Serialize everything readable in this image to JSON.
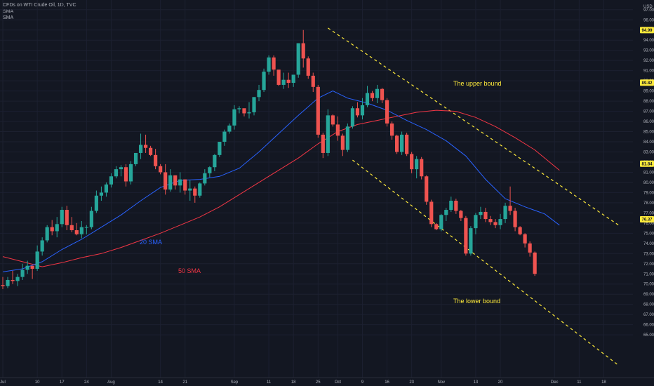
{
  "header": {
    "symbol": "CFDs on WTI Crude Oil, 1D, TVC",
    "ind1": "SMA",
    "ind2": "SMA",
    "currency": "USD"
  },
  "colors": {
    "background": "#131722",
    "up": "#26a69a",
    "down": "#ef5350",
    "sma20": "#2962ff",
    "sma50": "#f23645",
    "channel": "#ffeb3b",
    "text": "#b2b5be"
  },
  "chart_data": {
    "type": "candlestick",
    "ylim": [
      64.5,
      98
    ],
    "y_ticks": [
      "65.00",
      "66.00",
      "67.00",
      "68.00",
      "69.00",
      "70.00",
      "71.00",
      "72.00",
      "73.00",
      "74.00",
      "75.00",
      "76.00",
      "77.00",
      "78.00",
      "79.00",
      "80.00",
      "81.00",
      "82.00",
      "83.00",
      "84.00",
      "85.00",
      "86.00",
      "87.00",
      "88.00",
      "89.00",
      "90.00",
      "91.00",
      "92.00",
      "93.00",
      "94.00",
      "95.00",
      "96.00",
      "97.00"
    ],
    "x_ticks": [
      {
        "i": 0,
        "label": "Jul"
      },
      {
        "i": 7,
        "label": "10"
      },
      {
        "i": 12,
        "label": "17"
      },
      {
        "i": 17,
        "label": "24"
      },
      {
        "i": 22,
        "label": "Aug"
      },
      {
        "i": 32,
        "label": "14"
      },
      {
        "i": 37,
        "label": "21"
      },
      {
        "i": 47,
        "label": "Sep"
      },
      {
        "i": 54,
        "label": "11"
      },
      {
        "i": 59,
        "label": "18"
      },
      {
        "i": 64,
        "label": "25"
      },
      {
        "i": 68,
        "label": "Oct"
      },
      {
        "i": 73,
        "label": "9"
      },
      {
        "i": 78,
        "label": "16"
      },
      {
        "i": 83,
        "label": "23"
      },
      {
        "i": 89,
        "label": "Nov"
      },
      {
        "i": 96,
        "label": "13"
      },
      {
        "i": 101,
        "label": "20"
      },
      {
        "i": 112,
        "label": "Dec"
      },
      {
        "i": 117,
        "label": "11"
      },
      {
        "i": 122,
        "label": "18"
      }
    ],
    "candles": [
      [
        69.9,
        70.7,
        69.5,
        69.8
      ],
      [
        69.8,
        70.7,
        69.6,
        70.4
      ],
      [
        70.4,
        71.3,
        70.0,
        70.3
      ],
      [
        70.3,
        71.0,
        69.8,
        70.7
      ],
      [
        70.7,
        72.0,
        70.4,
        71.4
      ],
      [
        71.4,
        72.3,
        71.0,
        71.8
      ],
      [
        71.8,
        71.6,
        70.5,
        71.5
      ],
      [
        71.5,
        73.8,
        71.3,
        73.2
      ],
      [
        73.2,
        74.6,
        72.8,
        74.3
      ],
      [
        74.3,
        75.8,
        74.1,
        75.6
      ],
      [
        75.6,
        76.3,
        74.8,
        75.2
      ],
      [
        75.2,
        76.6,
        74.6,
        75.9
      ],
      [
        75.9,
        77.6,
        75.6,
        77.3
      ],
      [
        77.3,
        77.7,
        75.3,
        75.8
      ],
      [
        75.8,
        76.6,
        75.1,
        75.3
      ],
      [
        75.3,
        76.0,
        74.8,
        74.9
      ],
      [
        74.9,
        76.2,
        74.5,
        75.6
      ],
      [
        75.6,
        75.8,
        74.9,
        75.6
      ],
      [
        75.6,
        77.6,
        75.4,
        77.2
      ],
      [
        77.2,
        79.2,
        77.0,
        78.7
      ],
      [
        78.7,
        79.6,
        78.2,
        79.0
      ],
      [
        79.0,
        80.0,
        78.6,
        79.8
      ],
      [
        79.8,
        80.9,
        79.5,
        80.6
      ],
      [
        80.6,
        81.6,
        80.4,
        81.3
      ],
      [
        81.3,
        81.7,
        80.6,
        81.5
      ],
      [
        81.5,
        81.8,
        79.6,
        80.1
      ],
      [
        80.1,
        82.1,
        79.8,
        81.8
      ],
      [
        81.8,
        82.9,
        81.6,
        82.9
      ],
      [
        82.9,
        84.8,
        82.3,
        83.7
      ],
      [
        83.7,
        84.7,
        82.9,
        83.4
      ],
      [
        83.4,
        83.6,
        82.6,
        82.7
      ],
      [
        82.7,
        83.3,
        81.3,
        81.6
      ],
      [
        81.6,
        81.8,
        80.8,
        81.0
      ],
      [
        81.0,
        81.8,
        78.8,
        79.3
      ],
      [
        79.3,
        81.3,
        79.1,
        80.7
      ],
      [
        80.7,
        80.7,
        79.3,
        79.7
      ],
      [
        79.7,
        81.0,
        79.0,
        80.3
      ],
      [
        80.3,
        80.3,
        78.8,
        79.2
      ],
      [
        79.2,
        80.2,
        78.2,
        79.4
      ],
      [
        79.4,
        79.6,
        78.0,
        78.7
      ],
      [
        78.7,
        80.0,
        78.5,
        79.9
      ],
      [
        79.9,
        81.3,
        79.7,
        80.9
      ],
      [
        80.9,
        81.6,
        80.5,
        81.5
      ],
      [
        81.5,
        82.8,
        81.1,
        82.7
      ],
      [
        82.7,
        84.0,
        82.5,
        84.0
      ],
      [
        84.0,
        85.2,
        83.6,
        85.0
      ],
      [
        85.0,
        85.8,
        84.8,
        85.6
      ],
      [
        85.6,
        87.6,
        85.2,
        87.2
      ],
      [
        87.2,
        87.5,
        86.8,
        87.3
      ],
      [
        87.3,
        87.2,
        86.5,
        86.8
      ],
      [
        86.8,
        87.9,
        86.3,
        86.9
      ],
      [
        86.9,
        88.4,
        86.6,
        88.4
      ],
      [
        88.4,
        89.6,
        88.0,
        89.1
      ],
      [
        89.1,
        91.2,
        88.9,
        90.9
      ],
      [
        90.9,
        92.5,
        90.6,
        92.3
      ],
      [
        92.3,
        92.5,
        90.5,
        91.1
      ],
      [
        91.1,
        90.9,
        89.5,
        89.6
      ],
      [
        89.6,
        90.8,
        89.2,
        90.1
      ],
      [
        90.1,
        90.8,
        89.3,
        89.8
      ],
      [
        89.8,
        90.6,
        89.4,
        90.6
      ],
      [
        90.6,
        93.7,
        90.3,
        93.7
      ],
      [
        93.7,
        95.0,
        91.3,
        92.2
      ],
      [
        92.2,
        92.4,
        90.2,
        90.5
      ],
      [
        90.5,
        90.8,
        88.9,
        89.4
      ],
      [
        89.4,
        89.6,
        84.4,
        84.7
      ],
      [
        84.7,
        84.9,
        82.4,
        82.9
      ],
      [
        82.9,
        87.2,
        82.6,
        86.6
      ],
      [
        86.6,
        86.7,
        85.5,
        85.7
      ],
      [
        85.7,
        86.5,
        84.1,
        84.6
      ],
      [
        84.6,
        84.8,
        82.6,
        83.2
      ],
      [
        83.2,
        85.8,
        83.0,
        85.5
      ],
      [
        85.5,
        87.5,
        85.3,
        87.3
      ],
      [
        87.3,
        87.9,
        86.4,
        86.6
      ],
      [
        86.6,
        88.3,
        86.2,
        87.6
      ],
      [
        87.6,
        89.5,
        87.4,
        88.8
      ],
      [
        88.8,
        89.0,
        88.0,
        88.3
      ],
      [
        88.3,
        89.6,
        87.8,
        89.2
      ],
      [
        89.2,
        89.3,
        87.8,
        88.1
      ],
      [
        88.1,
        88.3,
        85.5,
        85.8
      ],
      [
        85.8,
        86.0,
        84.2,
        84.6
      ],
      [
        84.6,
        84.7,
        82.8,
        83.0
      ],
      [
        83.0,
        85.0,
        82.7,
        84.7
      ],
      [
        84.7,
        84.9,
        82.6,
        82.8
      ],
      [
        82.8,
        83.0,
        80.9,
        81.3
      ],
      [
        81.3,
        82.6,
        80.4,
        82.3
      ],
      [
        82.3,
        82.5,
        80.3,
        80.6
      ],
      [
        80.6,
        80.7,
        77.8,
        78.1
      ],
      [
        78.1,
        78.3,
        75.6,
        75.9
      ],
      [
        75.9,
        76.0,
        75.3,
        75.4
      ],
      [
        75.4,
        76.9,
        75.2,
        76.8
      ],
      [
        76.8,
        77.5,
        76.2,
        77.3
      ],
      [
        77.3,
        78.6,
        77.1,
        78.2
      ],
      [
        78.2,
        78.4,
        76.9,
        77.2
      ],
      [
        77.2,
        77.3,
        76.2,
        76.5
      ],
      [
        76.5,
        76.7,
        72.8,
        73.0
      ],
      [
        73.0,
        75.7,
        72.8,
        75.5
      ],
      [
        75.5,
        77.0,
        74.9,
        76.8
      ],
      [
        76.8,
        77.6,
        76.4,
        77.1
      ],
      [
        77.1,
        77.5,
        76.1,
        76.4
      ],
      [
        76.4,
        76.7,
        75.8,
        76.1
      ],
      [
        76.1,
        76.4,
        75.5,
        75.8
      ],
      [
        75.8,
        76.9,
        75.4,
        76.4
      ],
      [
        76.4,
        78.0,
        76.0,
        77.7
      ],
      [
        77.7,
        79.6,
        76.8,
        77.2
      ],
      [
        77.2,
        77.5,
        75.2,
        75.6
      ],
      [
        75.6,
        75.7,
        74.8,
        74.9
      ],
      [
        74.9,
        75.0,
        73.6,
        74.0
      ],
      [
        74.0,
        74.2,
        72.7,
        73.1
      ],
      [
        73.1,
        73.2,
        70.8,
        71.0
      ]
    ],
    "sma20": [
      [
        0,
        71.2
      ],
      [
        4,
        71.5
      ],
      [
        8,
        72.2
      ],
      [
        12,
        73.4
      ],
      [
        16,
        74.4
      ],
      [
        20,
        75.6
      ],
      [
        24,
        76.8
      ],
      [
        28,
        78.2
      ],
      [
        32,
        79.5
      ],
      [
        36,
        80.2
      ],
      [
        40,
        80.3
      ],
      [
        44,
        80.6
      ],
      [
        48,
        81.4
      ],
      [
        52,
        83.0
      ],
      [
        56,
        84.8
      ],
      [
        60,
        86.6
      ],
      [
        64,
        88.3
      ],
      [
        67,
        89.0
      ],
      [
        70,
        88.3
      ],
      [
        74,
        87.8
      ],
      [
        78,
        87.1
      ],
      [
        82,
        86.1
      ],
      [
        86,
        85.2
      ],
      [
        90,
        84.1
      ],
      [
        94,
        82.6
      ],
      [
        98,
        80.3
      ],
      [
        102,
        78.4
      ],
      [
        106,
        77.6
      ],
      [
        110,
        76.9
      ],
      [
        113,
        75.8
      ]
    ],
    "sma50": [
      [
        0,
        72.7
      ],
      [
        4,
        72.2
      ],
      [
        8,
        71.7
      ],
      [
        12,
        72.1
      ],
      [
        16,
        72.6
      ],
      [
        20,
        73.0
      ],
      [
        24,
        73.6
      ],
      [
        28,
        74.3
      ],
      [
        32,
        75.0
      ],
      [
        36,
        75.8
      ],
      [
        40,
        76.6
      ],
      [
        44,
        77.6
      ],
      [
        48,
        78.8
      ],
      [
        52,
        80.0
      ],
      [
        56,
        81.2
      ],
      [
        60,
        82.4
      ],
      [
        64,
        83.8
      ],
      [
        68,
        85.0
      ],
      [
        72,
        85.7
      ],
      [
        76,
        86.1
      ],
      [
        80,
        86.5
      ],
      [
        84,
        86.9
      ],
      [
        88,
        87.1
      ],
      [
        92,
        87.0
      ],
      [
        96,
        86.4
      ],
      [
        100,
        85.5
      ],
      [
        104,
        84.4
      ],
      [
        108,
        83.2
      ],
      [
        113,
        81.2
      ]
    ],
    "channel_upper": [
      [
        66,
        95.2
      ],
      [
        125,
        75.8
      ]
    ],
    "channel_lower": [
      [
        71,
        82.2
      ],
      [
        125,
        62.0
      ]
    ],
    "annotations": {
      "upper": "The upper bound",
      "lower": "The lower bound",
      "sma20": "20 SMA",
      "sma50": "50 SMA"
    },
    "price_badges": [
      {
        "value": 94.99,
        "label": "94.99",
        "bg": "#ffeb3b"
      },
      {
        "value": 89.82,
        "label": "89.82",
        "bg": "#ffeb3b"
      },
      {
        "value": 81.84,
        "label": "81.84",
        "bg": "#ffeb3b"
      },
      {
        "value": 76.37,
        "label": "76.37",
        "bg": "#ffeb3b"
      }
    ]
  }
}
